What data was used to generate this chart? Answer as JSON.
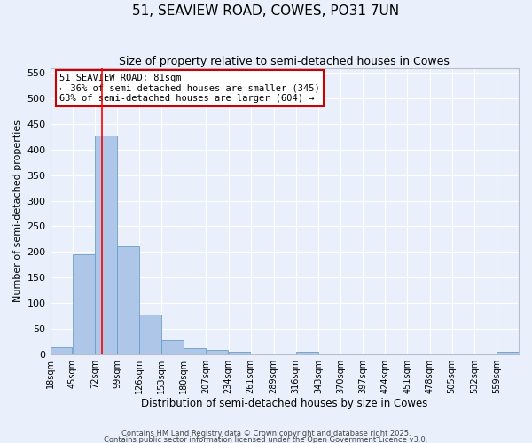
{
  "title": "51, SEAVIEW ROAD, COWES, PO31 7UN",
  "subtitle": "Size of property relative to semi-detached houses in Cowes",
  "xlabel": "Distribution of semi-detached houses by size in Cowes",
  "ylabel": "Number of semi-detached properties",
  "bin_labels": [
    "18sqm",
    "45sqm",
    "72sqm",
    "99sqm",
    "126sqm",
    "153sqm",
    "180sqm",
    "207sqm",
    "234sqm",
    "261sqm",
    "289sqm",
    "316sqm",
    "343sqm",
    "370sqm",
    "397sqm",
    "424sqm",
    "451sqm",
    "478sqm",
    "505sqm",
    "532sqm",
    "559sqm"
  ],
  "bin_edges": [
    18,
    45,
    72,
    99,
    126,
    153,
    180,
    207,
    234,
    261,
    289,
    316,
    343,
    370,
    397,
    424,
    451,
    478,
    505,
    532,
    559
  ],
  "bar_heights": [
    13,
    195,
    428,
    211,
    77,
    27,
    11,
    8,
    4,
    0,
    0,
    4,
    0,
    0,
    0,
    0,
    0,
    0,
    0,
    0,
    5
  ],
  "bar_color": "#aec6e8",
  "bar_edge_color": "#6a9fc8",
  "bg_color": "#eaf0fb",
  "grid_color": "#ffffff",
  "red_line_x": 81,
  "annotation_text": "51 SEAVIEW ROAD: 81sqm\n← 36% of semi-detached houses are smaller (345)\n63% of semi-detached houses are larger (604) →",
  "annotation_box_color": "#ffffff",
  "annotation_border_color": "#cc0000",
  "ylim": [
    0,
    560
  ],
  "yticks": [
    0,
    50,
    100,
    150,
    200,
    250,
    300,
    350,
    400,
    450,
    500,
    550
  ],
  "footer1": "Contains HM Land Registry data © Crown copyright and database right 2025.",
  "footer2": "Contains public sector information licensed under the Open Government Licence v3.0."
}
